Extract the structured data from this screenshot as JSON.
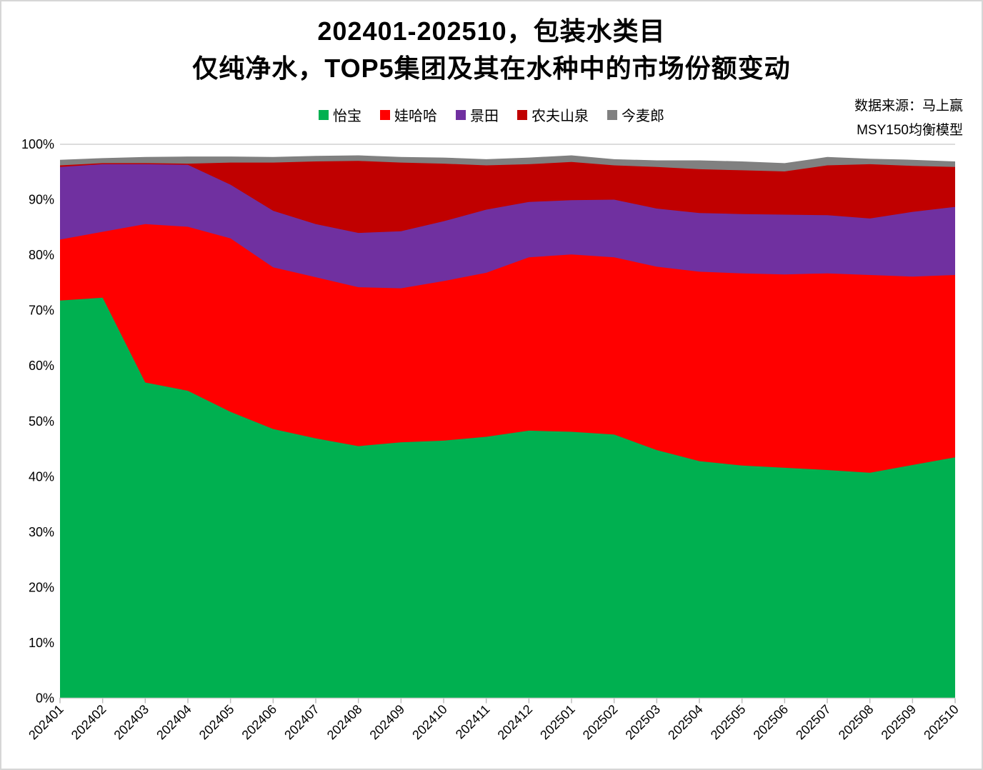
{
  "title": {
    "line1": "202401-202510，包装水类目",
    "line2": "仅纯净水，TOP5集团及其在水种中的市场份额变动"
  },
  "source": {
    "line1": "数据来源：马上赢",
    "line2": "MSY150均衡模型"
  },
  "chart_data": {
    "type": "area",
    "stacked": true,
    "unit": "percent-share",
    "title": "202401-202510，包装水类目 仅纯净水，TOP5集团及其在水种中的市场份额变动",
    "categories": [
      "202401",
      "202402",
      "202403",
      "202404",
      "202405",
      "202406",
      "202407",
      "202408",
      "202409",
      "202410",
      "202411",
      "202412",
      "202501",
      "202502",
      "202503",
      "202504",
      "202505",
      "202506",
      "202507",
      "202508",
      "202509",
      "202510"
    ],
    "series": [
      {
        "name": "怡宝",
        "color": "#00B050",
        "values": [
          71.8,
          72.3,
          57.0,
          55.5,
          51.7,
          48.6,
          46.9,
          45.5,
          46.2,
          46.5,
          47.2,
          48.3,
          48.1,
          47.6,
          44.8,
          42.8,
          42.0,
          41.6,
          41.2,
          40.7,
          42.1,
          43.5
        ]
      },
      {
        "name": "娃哈哈",
        "color": "#FF0000",
        "values": [
          11.0,
          11.9,
          28.6,
          29.6,
          31.3,
          29.2,
          29.1,
          28.7,
          27.8,
          28.8,
          29.6,
          31.3,
          32.0,
          32.0,
          33.1,
          34.2,
          34.7,
          34.9,
          35.5,
          35.7,
          34.0,
          32.9
        ]
      },
      {
        "name": "景田",
        "color": "#7030A0",
        "values": [
          13.1,
          12.2,
          10.8,
          11.2,
          9.7,
          10.2,
          9.6,
          9.8,
          10.3,
          10.8,
          11.4,
          10.0,
          9.8,
          10.4,
          10.5,
          10.6,
          10.7,
          10.8,
          10.5,
          10.2,
          11.7,
          12.3
        ]
      },
      {
        "name": "农夫山泉",
        "color": "#C00000",
        "values": [
          0.3,
          0.2,
          0.2,
          0.2,
          4.0,
          8.7,
          11.3,
          13.0,
          12.4,
          10.4,
          8.0,
          6.8,
          6.9,
          6.2,
          7.5,
          7.9,
          7.9,
          7.8,
          9.0,
          9.8,
          8.3,
          7.2
        ]
      },
      {
        "name": "今麦郎",
        "color": "#808080",
        "values": [
          1.0,
          0.9,
          1.1,
          1.3,
          1.1,
          1.0,
          1.0,
          1.0,
          1.0,
          1.1,
          1.1,
          1.2,
          1.2,
          1.1,
          1.2,
          1.6,
          1.6,
          1.5,
          1.5,
          1.0,
          1.1,
          1.0
        ]
      }
    ],
    "ylim": [
      0,
      100
    ],
    "y_ticks": [
      "0%",
      "10%",
      "20%",
      "30%",
      "40%",
      "50%",
      "60%",
      "70%",
      "80%",
      "90%",
      "100%"
    ],
    "xlabel": "",
    "ylabel": "",
    "grid": "top-line-only",
    "legend_position": "top-center",
    "x_label_rotation": -45,
    "axis_color": "#d0d0d0"
  }
}
